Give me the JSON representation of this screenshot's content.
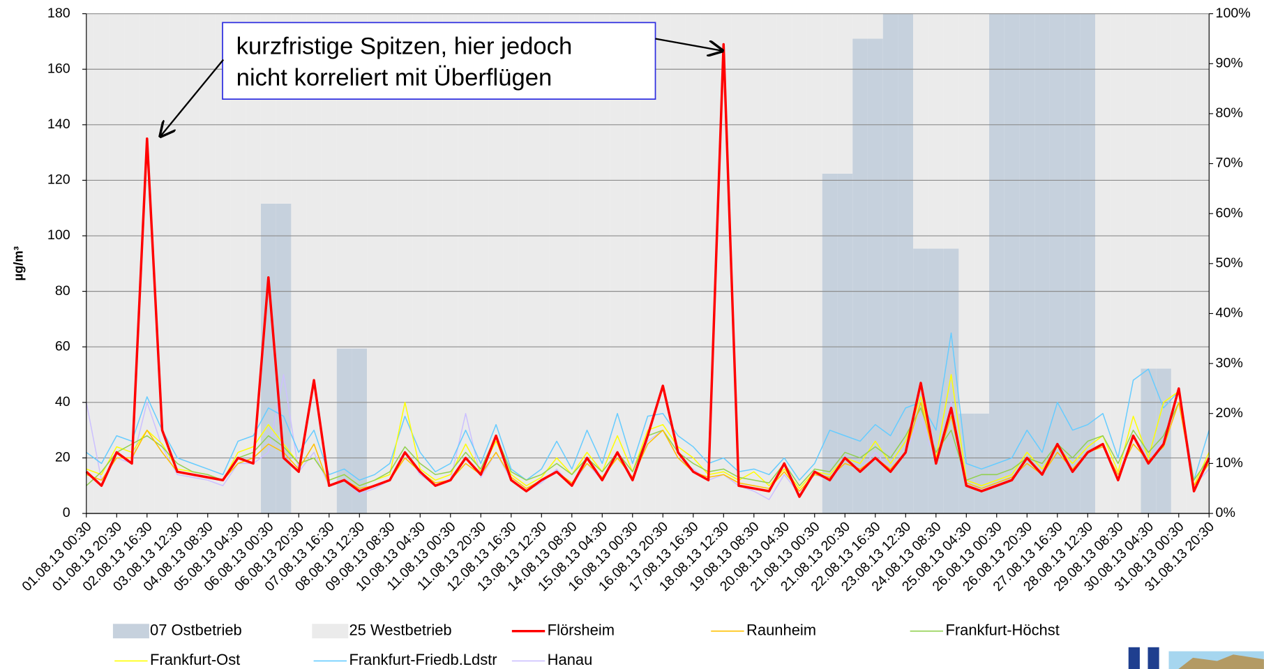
{
  "chart_data": {
    "type": "line",
    "y_label": "µg/m³",
    "annotation": [
      "kurzfristige Spitzen, hier jedoch",
      "nicht korreliert mit Überflügen"
    ],
    "categories": [
      "01.08.13 00:30",
      null,
      "01.08.13 20:30",
      null,
      "02.08.13 16:30",
      null,
      "03.08.13 12:30",
      null,
      "04.08.13 08:30",
      null,
      "05.08.13 04:30",
      null,
      "06.08.13 00:30",
      null,
      "06.08.13 20:30",
      null,
      "07.08.13 16:30",
      null,
      "08.08.13 12:30",
      null,
      "09.08.13 08:30",
      null,
      "10.08.13 04:30",
      null,
      "11.08.13 00:30",
      null,
      "11.08.13 20:30",
      null,
      "12.08.13 16:30",
      null,
      "13.08.13 12:30",
      null,
      "14.08.13 08:30",
      null,
      "15.08.13 04:30",
      null,
      "16.08.13 00:30",
      null,
      "16.08.13 20:30",
      null,
      "17.08.13 16:30",
      null,
      "18.08.13 12:30",
      null,
      "19.08.13 08:30",
      null,
      "20.08.13 04:30",
      null,
      "21.08.13 00:30",
      null,
      "21.08.13 20:30",
      null,
      "22.08.13 16:30",
      null,
      "23.08.13 12:30",
      null,
      "24.08.13 08:30",
      null,
      "25.08.13 04:30",
      null,
      "26.08.13 00:30",
      null,
      "26.08.13 20:30",
      null,
      "27.08.13 16:30",
      null,
      "28.08.13 12:30",
      null,
      "29.08.13 08:30",
      null,
      "30.08.13 04:30",
      null,
      "31.08.13 00:30",
      null,
      "31.08.13 20:30"
    ],
    "ylim": [
      0,
      180
    ],
    "yticks": [
      0,
      20,
      40,
      60,
      80,
      100,
      120,
      140,
      160,
      180
    ],
    "y2lim": [
      0,
      100
    ],
    "y2ticks": [
      {
        "value": 0,
        "label": "0%"
      },
      {
        "value": 10,
        "label": "10%"
      },
      {
        "value": 20,
        "label": "20%"
      },
      {
        "value": 30,
        "label": "30%"
      },
      {
        "value": 40,
        "label": "40%"
      },
      {
        "value": 50,
        "label": "50%"
      },
      {
        "value": 60,
        "label": "60%"
      },
      {
        "value": 70,
        "label": "70%"
      },
      {
        "value": 80,
        "label": "80%"
      },
      {
        "value": 90,
        "label": "90%"
      },
      {
        "value": 100,
        "label": "100%"
      }
    ],
    "grid": true,
    "series": [
      {
        "name": "07 Ostbetrieb",
        "type": "bar",
        "axis": "y2",
        "color": "#c6d1dd",
        "values": [
          0,
          0,
          0,
          0,
          0,
          0,
          0,
          0,
          0,
          0,
          0,
          0,
          62,
          62,
          0,
          0,
          0,
          33,
          33,
          0,
          0,
          0,
          0,
          0,
          0,
          0,
          0,
          0,
          0,
          0,
          0,
          0,
          0,
          0,
          0,
          0,
          0,
          0,
          0,
          0,
          0,
          0,
          0,
          0,
          0,
          0,
          0,
          0,
          0,
          68,
          68,
          95,
          95,
          100,
          100,
          53,
          53,
          53,
          20,
          20,
          100,
          100,
          100,
          100,
          100,
          100,
          100,
          0,
          0,
          0,
          29,
          29,
          0,
          0,
          0
        ]
      },
      {
        "name": "25 Westbetrieb",
        "type": "bar",
        "axis": "y2",
        "color": "#ebebeb",
        "values": [
          100,
          100,
          100,
          100,
          100,
          100,
          100,
          100,
          100,
          100,
          100,
          100,
          38,
          38,
          100,
          100,
          100,
          67,
          67,
          100,
          100,
          100,
          100,
          100,
          100,
          100,
          100,
          100,
          100,
          100,
          100,
          100,
          100,
          100,
          100,
          100,
          100,
          100,
          100,
          100,
          100,
          100,
          100,
          100,
          100,
          100,
          100,
          100,
          100,
          32,
          32,
          5,
          5,
          0,
          0,
          47,
          47,
          47,
          80,
          80,
          0,
          0,
          0,
          0,
          0,
          0,
          0,
          100,
          100,
          100,
          71,
          71,
          100,
          100,
          100
        ]
      },
      {
        "name": "Flörsheim",
        "type": "line",
        "color": "#ff0000",
        "values": [
          15,
          10,
          22,
          18,
          135,
          30,
          15,
          14,
          13,
          12,
          20,
          18,
          85,
          20,
          15,
          48,
          10,
          12,
          8,
          10,
          12,
          22,
          15,
          10,
          12,
          20,
          14,
          28,
          12,
          8,
          12,
          15,
          10,
          20,
          12,
          22,
          12,
          28,
          46,
          22,
          15,
          12,
          169,
          10,
          9,
          8,
          18,
          6,
          15,
          12,
          20,
          15,
          20,
          15,
          22,
          47,
          18,
          38,
          10,
          8,
          10,
          12,
          20,
          14,
          25,
          15,
          22,
          25,
          12,
          28,
          18,
          25,
          45,
          8,
          20
        ]
      },
      {
        "name": "Raunheim",
        "type": "line",
        "color": "#ffc000",
        "values": [
          14,
          12,
          20,
          20,
          30,
          22,
          15,
          14,
          13,
          12,
          18,
          20,
          25,
          22,
          16,
          25,
          10,
          12,
          9,
          10,
          12,
          20,
          15,
          11,
          12,
          18,
          14,
          22,
          13,
          9,
          12,
          15,
          11,
          18,
          13,
          20,
          13,
          25,
          30,
          20,
          15,
          13,
          14,
          11,
          10,
          9,
          15,
          8,
          14,
          13,
          18,
          16,
          20,
          16,
          22,
          40,
          18,
          35,
          11,
          9,
          11,
          13,
          18,
          14,
          22,
          16,
          22,
          24,
          14,
          25,
          19,
          24,
          40,
          10,
          18
        ]
      },
      {
        "name": "Frankfurt-Höchst",
        "type": "line",
        "color": "#92d050",
        "values": [
          10,
          15,
          22,
          25,
          28,
          24,
          18,
          15,
          14,
          12,
          20,
          22,
          28,
          24,
          18,
          20,
          12,
          14,
          10,
          12,
          15,
          24,
          18,
          14,
          15,
          22,
          16,
          28,
          15,
          12,
          14,
          18,
          14,
          20,
          15,
          22,
          15,
          28,
          30,
          22,
          18,
          15,
          16,
          13,
          12,
          11,
          18,
          10,
          16,
          15,
          22,
          20,
          24,
          20,
          28,
          38,
          22,
          30,
          12,
          14,
          14,
          16,
          20,
          18,
          25,
          20,
          26,
          28,
          18,
          30,
          22,
          28,
          40,
          12,
          20
        ]
      },
      {
        "name": "Frankfurt-Ost",
        "type": "line",
        "color": "#ffff00",
        "values": [
          16,
          14,
          24,
          22,
          30,
          25,
          16,
          15,
          14,
          12,
          22,
          24,
          32,
          25,
          18,
          20,
          12,
          14,
          10,
          12,
          14,
          40,
          16,
          12,
          14,
          25,
          15,
          26,
          14,
          10,
          13,
          20,
          14,
          22,
          15,
          28,
          15,
          30,
          32,
          24,
          20,
          14,
          15,
          12,
          15,
          10,
          16,
          9,
          15,
          14,
          20,
          18,
          26,
          18,
          26,
          42,
          20,
          50,
          12,
          10,
          12,
          14,
          22,
          16,
          24,
          18,
          24,
          28,
          15,
          35,
          20,
          40,
          44,
          10,
          22
        ]
      },
      {
        "name": "Frankfurt-Friedb.Ldstr",
        "type": "line",
        "color": "#66ccff",
        "values": [
          22,
          18,
          28,
          26,
          42,
          30,
          20,
          18,
          16,
          14,
          26,
          28,
          38,
          35,
          22,
          30,
          14,
          16,
          12,
          14,
          18,
          35,
          22,
          15,
          18,
          30,
          18,
          32,
          16,
          12,
          16,
          26,
          16,
          30,
          18,
          36,
          18,
          35,
          36,
          28,
          24,
          18,
          20,
          15,
          16,
          14,
          20,
          12,
          18,
          30,
          28,
          26,
          32,
          28,
          38,
          40,
          30,
          65,
          18,
          16,
          18,
          20,
          30,
          22,
          40,
          30,
          32,
          36,
          20,
          48,
          52,
          38,
          44,
          12,
          30
        ]
      },
      {
        "name": "Hanau",
        "type": "line",
        "color": "#ccc0ff",
        "values": [
          40,
          12,
          20,
          18,
          40,
          24,
          14,
          13,
          12,
          10,
          18,
          18,
          22,
          50,
          15,
          22,
          10,
          12,
          7,
          9,
          12,
          22,
          14,
          10,
          12,
          36,
          13,
          22,
          12,
          8,
          11,
          16,
          10,
          18,
          12,
          22,
          12,
          26,
          30,
          20,
          16,
          12,
          14,
          10,
          8,
          5,
          14,
          7,
          14,
          12,
          18,
          16,
          22,
          16,
          22,
          35,
          18,
          40,
          10,
          9,
          10,
          12,
          18,
          14,
          22,
          16,
          22,
          24,
          14,
          28,
          20,
          26,
          40,
          10,
          16
        ]
      }
    ]
  }
}
